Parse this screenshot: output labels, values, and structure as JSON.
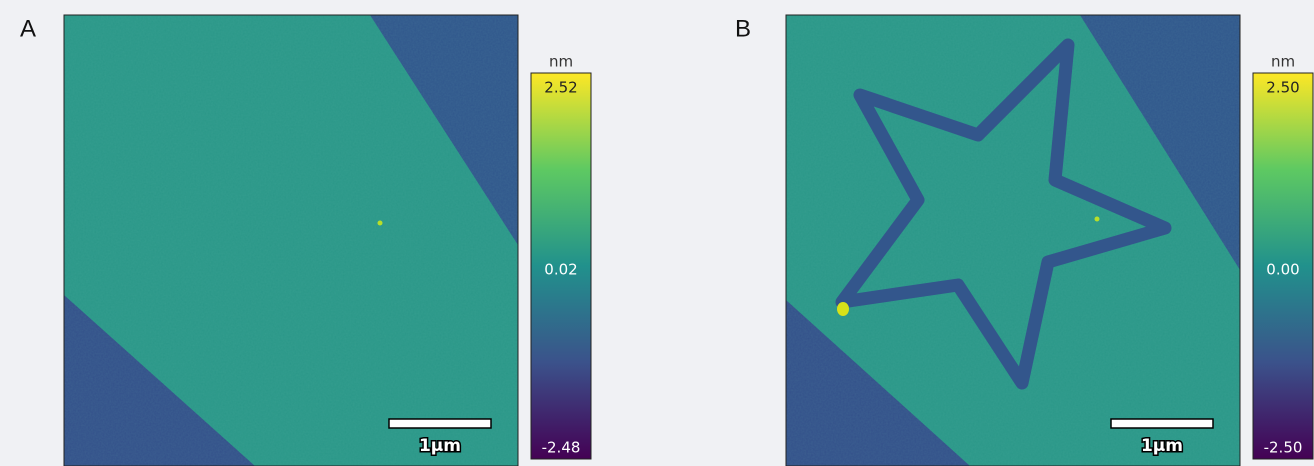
{
  "panels": [
    {
      "label": "A",
      "colorbar": {
        "unit": "nm",
        "max": "2.52",
        "mid": "0.02",
        "min": "-2.48"
      },
      "scale_bar": "1μm"
    },
    {
      "label": "B",
      "colorbar": {
        "unit": "nm",
        "max": "2.50",
        "mid": "0.00",
        "min": "-2.50"
      },
      "scale_bar": "1μm"
    }
  ]
}
